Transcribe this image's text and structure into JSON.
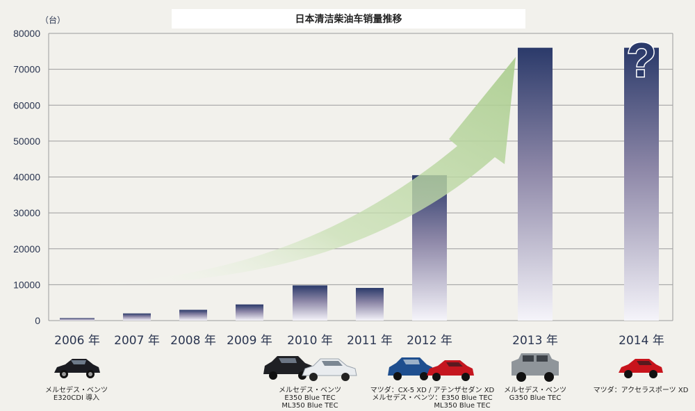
{
  "chart_data": {
    "type": "bar",
    "title": "日本清洁柴油车销量推移",
    "unit_label": "（台）",
    "categories": [
      "2006 年",
      "2007 年",
      "2008 年",
      "2009 年",
      "2010 年",
      "2011 年",
      "2012 年",
      "2013 年",
      "2014 年"
    ],
    "values": [
      700,
      2000,
      3000,
      4500,
      9800,
      9100,
      40500,
      76000,
      76000
    ],
    "ylim": [
      0,
      80000
    ],
    "yticks": [
      0,
      10000,
      20000,
      30000,
      40000,
      50000,
      60000,
      70000,
      80000
    ],
    "grid": true,
    "unknown_marker": "?",
    "colors": {
      "bar_top": "#2b3a6a",
      "bar_bottom": "#f5f4fa",
      "arrow": "#a9cc8c",
      "axis_text": "#2a3550"
    }
  },
  "cars": [
    {
      "id": "2006",
      "captions": [
        "メルセデス・ベンツ",
        "E320CDI 導入"
      ],
      "icon": "mercedes-sedan-icon"
    },
    {
      "id": "2010",
      "captions": [
        "メルセデス・ベンツ",
        "E350 Blue TEC",
        "ML350 Blue TEC"
      ],
      "icon": "mercedes-suv-sedan-icon"
    },
    {
      "id": "2012",
      "captions": [
        "マツダ：CX-5 XD / アテンザセダン XD",
        "メルセデス・ベンツ：E350 Blue TEC",
        "ML350 Blue TEC"
      ],
      "icon": "mazda-cx5-atenza-icon"
    },
    {
      "id": "2013",
      "captions": [
        "メルセデス・ベンツ",
        "G350 Blue TEC"
      ],
      "icon": "mercedes-gclass-icon"
    },
    {
      "id": "2014",
      "captions": [
        "マツダ：アクセラスポーツ XD"
      ],
      "icon": "mazda-axela-icon"
    }
  ]
}
